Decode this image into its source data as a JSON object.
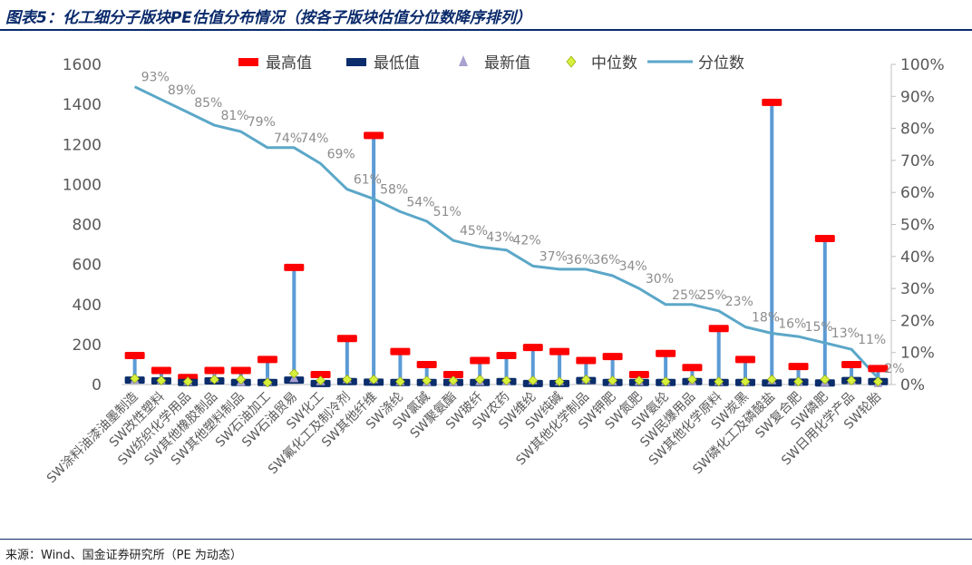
{
  "figure": {
    "title": "图表5：化工细分子版块PE估值分布情况（按各子版块估值分位数降序排列）",
    "source": "来源：Wind、国金证券研究所（PE 为动态）"
  },
  "legend": {
    "max": "最高值",
    "min": "最低值",
    "latest": "最新值",
    "median": "中位数",
    "percentile": "分位数"
  },
  "colors": {
    "max": "#ff0000",
    "min": "#0b2d6b",
    "latest": "#a9a0d0",
    "median": "#d6f03c",
    "percentile": "#5ba7c8",
    "range_bar": "#5b9bd5"
  },
  "chart_data": {
    "type": "line",
    "categories": [
      "SW涂料油漆油墨制造",
      "SW改性塑料",
      "SW纺织化学用品",
      "SW其他橡胶制品",
      "SW其他塑料制品",
      "SW石油加工",
      "SW石油贸易",
      "SW化工",
      "SW氟化工及制冷剂",
      "SW其他纤维",
      "SW涤纶",
      "SW氯碱",
      "SW聚氨酯",
      "SW玻纤",
      "SW农药",
      "SW维纶",
      "SW纯碱",
      "SW其他化学制品",
      "SW钾肥",
      "SW氮肥",
      "SW氨纶",
      "SW民爆用品",
      "SW其他化学原料",
      "SW炭黑",
      "SW磷化工及磷酸盐",
      "SW复合肥",
      "SW磷肥",
      "SW日用化学产品",
      "SW轮胎"
    ],
    "series": [
      {
        "name": "最高值",
        "axis": "left",
        "values": [
          145,
          70,
          35,
          70,
          70,
          125,
          585,
          50,
          230,
          1245,
          165,
          100,
          50,
          120,
          145,
          185,
          165,
          120,
          140,
          50,
          155,
          85,
          280,
          125,
          1410,
          90,
          730,
          100,
          80
        ]
      },
      {
        "name": "最低值",
        "axis": "left",
        "values": [
          22,
          18,
          10,
          18,
          10,
          10,
          22,
          5,
          15,
          12,
          10,
          10,
          10,
          10,
          15,
          5,
          5,
          20,
          10,
          10,
          10,
          15,
          10,
          10,
          8,
          12,
          8,
          20,
          15
        ]
      },
      {
        "name": "最新值",
        "axis": "left",
        "values": [
          22,
          20,
          15,
          30,
          12,
          15,
          30,
          15,
          25,
          25,
          15,
          12,
          12,
          15,
          15,
          20,
          15,
          25,
          15,
          15,
          15,
          15,
          15,
          15,
          20,
          15,
          10,
          20,
          5
        ]
      },
      {
        "name": "中位数",
        "axis": "left",
        "values": [
          30,
          20,
          15,
          25,
          25,
          10,
          55,
          20,
          25,
          25,
          15,
          20,
          20,
          25,
          20,
          20,
          15,
          25,
          20,
          20,
          15,
          25,
          15,
          15,
          25,
          15,
          25,
          20,
          15
        ]
      },
      {
        "name": "分位数",
        "axis": "right",
        "unit": "%",
        "values": [
          93,
          89,
          85,
          81,
          79,
          74,
          74,
          69,
          61,
          58,
          54,
          51,
          45,
          43,
          42,
          37,
          36,
          36,
          34,
          30,
          25,
          25,
          23,
          18,
          16,
          15,
          13,
          11,
          2
        ],
        "labels": [
          "93%",
          "89%",
          "85%",
          "81%",
          "79%",
          "74%",
          "74%",
          "69%",
          "61%",
          "58%",
          "54%",
          "51%",
          "45%",
          "43%",
          "42%",
          "37%",
          "36%",
          "36%",
          "34%",
          "30%",
          "25%",
          "25%",
          "23%",
          "18%",
          "16%",
          "15%",
          "13%",
          "11%",
          "2%"
        ]
      }
    ],
    "y_left": {
      "min": 0,
      "max": 1600,
      "ticks": [
        "0",
        "200",
        "400",
        "600",
        "800",
        "1000",
        "1200",
        "1400",
        "1600"
      ]
    },
    "y_right": {
      "min": 0,
      "max": 100,
      "ticks": [
        "0%",
        "10%",
        "20%",
        "30%",
        "40%",
        "50%",
        "60%",
        "70%",
        "80%",
        "90%",
        "100%"
      ]
    },
    "grid": false,
    "legend_position": "top-center"
  }
}
